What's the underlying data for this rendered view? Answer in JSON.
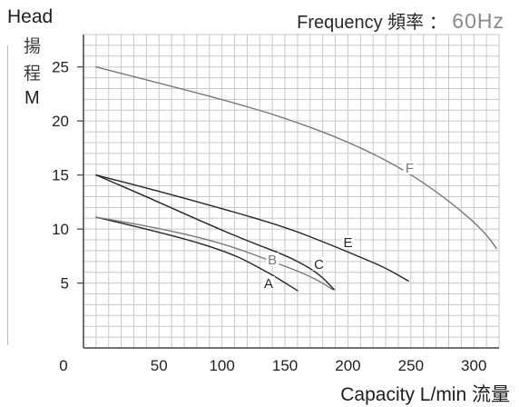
{
  "header": {
    "ylabel_en": "Head",
    "ylabel_cn1": "揚",
    "ylabel_cn2": "程",
    "ylabel_unit": "M",
    "frequency_label": "Frequency 頻率 ：",
    "frequency_value": "60Hz"
  },
  "chart_data": {
    "type": "line",
    "xlabel": "Capacity L/min 流量",
    "ylabel": "Head 揚程 M",
    "xlim": [
      -10,
      320
    ],
    "ylim": [
      -1,
      28
    ],
    "x_ticks": [
      0,
      50,
      100,
      150,
      200,
      250,
      300
    ],
    "y_ticks": [
      5,
      10,
      15,
      20,
      25
    ],
    "grid": true,
    "legend": "none",
    "colors": {
      "grid": "#c8c8c8",
      "dark": "#262626",
      "gray": "#7a7a7a",
      "frame": "#444444"
    },
    "series": [
      {
        "name": "A",
        "color": "#262626",
        "x": [
          0,
          40,
          80,
          110,
          130,
          145,
          160
        ],
        "y": [
          11.1,
          10.0,
          8.8,
          7.6,
          6.4,
          5.4,
          4.3
        ]
      },
      {
        "name": "B",
        "color": "#7a7a7a",
        "x": [
          0,
          40,
          80,
          110,
          140,
          165,
          180,
          188
        ],
        "y": [
          11.1,
          10.3,
          9.3,
          8.3,
          7.0,
          5.9,
          5.0,
          4.4
        ]
      },
      {
        "name": "C",
        "color": "#262626",
        "x": [
          0,
          40,
          80,
          120,
          150,
          170,
          180,
          185,
          189
        ],
        "y": [
          15.0,
          13.0,
          10.9,
          8.9,
          7.6,
          6.4,
          5.5,
          4.9,
          4.4
        ]
      },
      {
        "name": "E",
        "color": "#262626",
        "x": [
          0,
          50,
          100,
          150,
          185,
          210,
          230,
          248
        ],
        "y": [
          15.0,
          13.5,
          11.9,
          10.2,
          8.6,
          7.4,
          6.4,
          5.2
        ]
      },
      {
        "name": "F",
        "color": "#7a7a7a",
        "x": [
          0,
          50,
          100,
          150,
          200,
          240,
          270,
          295,
          310,
          318
        ],
        "y": [
          25.0,
          23.5,
          22.0,
          20.3,
          18.1,
          15.8,
          13.5,
          11.2,
          9.5,
          8.2
        ]
      }
    ],
    "annotations": [
      {
        "text": "A",
        "x": 137,
        "y": 4.7,
        "color": "#262626"
      },
      {
        "text": "B",
        "x": 140,
        "y": 6.9,
        "color": "#7a7a7a"
      },
      {
        "text": "C",
        "x": 177,
        "y": 6.5,
        "color": "#262626"
      },
      {
        "text": "E",
        "x": 200,
        "y": 8.5,
        "color": "#262626"
      },
      {
        "text": "F",
        "x": 249,
        "y": 15.4,
        "color": "#7a7a7a"
      }
    ]
  }
}
